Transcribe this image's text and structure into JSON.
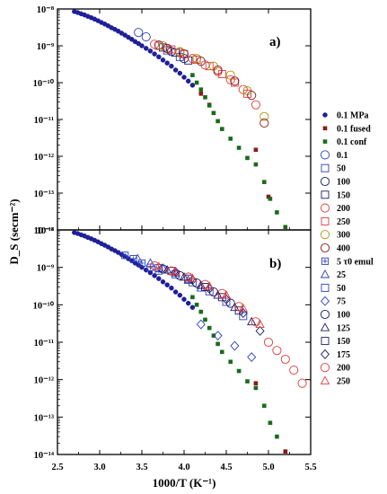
{
  "chart_data": [
    {
      "type": "scatter",
      "panel_label": "a)",
      "xlabel": "1000/T (K⁻¹)",
      "ylabel": "D_S (secm⁻²)",
      "xlim": [
        2.5,
        5.5
      ],
      "ylim_log10": [
        -14,
        -8
      ],
      "y_scale": "log",
      "x_ticks": [
        "2.5",
        "3.0",
        "3.5",
        "4.0",
        "4.5",
        "5.0",
        "5.5"
      ],
      "y_ticks": [
        "10⁻¹⁴",
        "10⁻¹³",
        "10⁻¹²",
        "10⁻¹¹",
        "10⁻¹⁰",
        "10⁻⁹",
        "10⁻⁸"
      ],
      "series": [
        {
          "name": "0.1 MPa",
          "marker": "dot",
          "color": "#1f1f99",
          "x": [
            2.7,
            2.74,
            2.78,
            2.82,
            2.86,
            2.9,
            2.94,
            2.98,
            3.02,
            3.06,
            3.1,
            3.14,
            3.18,
            3.22,
            3.26,
            3.3,
            3.34,
            3.38,
            3.42,
            3.46,
            3.5,
            3.55,
            3.6,
            3.65,
            3.7,
            3.75,
            3.8,
            3.85,
            3.9,
            3.95,
            4.0,
            4.05,
            4.1
          ],
          "y": [
            8.5e-09,
            8e-09,
            7.4e-09,
            6.9e-09,
            6.3e-09,
            5.8e-09,
            5.3e-09,
            4.8e-09,
            4.3e-09,
            3.9e-09,
            3.5e-09,
            3.1e-09,
            2.8e-09,
            2.5e-09,
            2.2e-09,
            1.95e-09,
            1.7e-09,
            1.5e-09,
            1.3e-09,
            1.15e-09,
            1e-09,
            8.5e-10,
            7.2e-10,
            6e-10,
            5e-10,
            4.1e-10,
            3.4e-10,
            2.8e-10,
            2.2e-10,
            1.8e-10,
            1.4e-10,
            1.1e-10,
            8.5e-11
          ]
        },
        {
          "name": "0.1 fused",
          "marker": "square-filled-small",
          "color": "#8b1a1a",
          "x": [
            4.2,
            4.3,
            4.85,
            5.0
          ],
          "y": [
            5e-11,
            2.5e-11,
            1.5e-12,
            8e-14
          ]
        },
        {
          "name": "0.1 conf",
          "marker": "square-filled-small",
          "color": "#1a6b1a",
          "x": [
            4.1,
            4.15,
            4.2,
            4.25,
            4.3,
            4.35,
            4.4,
            4.45,
            4.55,
            4.65,
            4.75,
            4.85,
            4.95,
            5.02,
            5.1,
            5.2
          ],
          "y": [
            1.6e-10,
            1e-10,
            6.5e-11,
            4e-11,
            2.4e-11,
            1.5e-11,
            9e-12,
            5.5e-12,
            3e-12,
            1.7e-12,
            9e-13,
            6e-13,
            2e-13,
            7e-14,
            3e-14,
            1.2e-14
          ]
        },
        {
          "name": "0.1",
          "marker": "circle",
          "color": "#2a3fbf",
          "x": [
            3.46,
            3.55
          ],
          "y": [
            2.3e-09,
            1.75e-09
          ]
        },
        {
          "name": "50",
          "marker": "square",
          "color": "#2a3fbf",
          "x": [
            3.8,
            3.95
          ],
          "y": [
            7.5e-10,
            5e-10
          ]
        },
        {
          "name": "100",
          "marker": "circle",
          "color": "#1a1a6b",
          "x": [
            3.7,
            3.85,
            4.0
          ],
          "y": [
            1.05e-09,
            7e-10,
            4.5e-10
          ]
        },
        {
          "name": "150",
          "marker": "square",
          "color": "#1a1a6b",
          "x": [
            3.75,
            3.9,
            4.05
          ],
          "y": [
            9e-10,
            6.5e-10,
            4e-10
          ]
        },
        {
          "name": "200",
          "marker": "circle",
          "color": "#e03a3a",
          "x": [
            3.65,
            3.8,
            3.95,
            4.1,
            4.25,
            4.4,
            4.55,
            4.7,
            4.85
          ],
          "y": [
            1.1e-09,
            8.5e-10,
            6.5e-10,
            4.5e-10,
            3e-10,
            2e-10,
            1.2e-10,
            6.5e-11,
            2.5e-11
          ]
        },
        {
          "name": "250",
          "marker": "square",
          "color": "#e03a3a",
          "x": [
            3.7,
            3.85,
            4.0,
            4.15,
            4.3,
            4.45,
            4.6,
            4.75
          ],
          "y": [
            1e-09,
            8e-10,
            6e-10,
            4.2e-10,
            2.8e-10,
            1.7e-10,
            1e-10,
            5e-11
          ]
        },
        {
          "name": "300",
          "marker": "circle",
          "color": "#a39a10",
          "x": [
            3.75,
            3.95,
            4.15,
            4.35,
            4.55,
            4.75,
            4.95
          ],
          "y": [
            1e-09,
            7e-10,
            4.5e-10,
            2.8e-10,
            1.6e-10,
            6e-11,
            1.2e-11
          ]
        },
        {
          "name": "400",
          "marker": "circle",
          "color": "#8b1a1a",
          "x": [
            3.8,
            4.0,
            4.2,
            4.4,
            4.6,
            4.8,
            4.95
          ],
          "y": [
            8.5e-10,
            6e-10,
            3.8e-10,
            2.2e-10,
            1.1e-10,
            4.5e-11,
            8e-12
          ]
        }
      ]
    },
    {
      "type": "scatter",
      "panel_label": "b)",
      "xlabel": "1000/T (K⁻¹)",
      "ylabel": "D_S (secm⁻²)",
      "xlim": [
        2.5,
        5.5
      ],
      "ylim_log10": [
        -14,
        -8
      ],
      "y_scale": "log",
      "x_ticks": [
        "2.5",
        "3.0",
        "3.5",
        "4.0",
        "4.5",
        "5.0",
        "5.5"
      ],
      "y_ticks": [
        "10⁻¹⁴",
        "10⁻¹³",
        "10⁻¹²",
        "10⁻¹¹",
        "10⁻¹⁰",
        "10⁻⁹",
        "10⁻⁸"
      ],
      "series": [
        {
          "name": "0.1 MPa",
          "marker": "dot",
          "color": "#1f1f99",
          "x": [
            2.7,
            2.74,
            2.78,
            2.82,
            2.86,
            2.9,
            2.94,
            2.98,
            3.02,
            3.06,
            3.1,
            3.14,
            3.18,
            3.22,
            3.26,
            3.3,
            3.34,
            3.38,
            3.42,
            3.46,
            3.5,
            3.55,
            3.6,
            3.65,
            3.7,
            3.75,
            3.8,
            3.85,
            3.9,
            3.95,
            4.0,
            4.05,
            4.1
          ],
          "y": [
            8.5e-09,
            8e-09,
            7.4e-09,
            6.9e-09,
            6.3e-09,
            5.8e-09,
            5.3e-09,
            4.8e-09,
            4.3e-09,
            3.9e-09,
            3.5e-09,
            3.1e-09,
            2.8e-09,
            2.5e-09,
            2.2e-09,
            1.95e-09,
            1.7e-09,
            1.5e-09,
            1.3e-09,
            1.15e-09,
            1e-09,
            8.5e-10,
            7.2e-10,
            6e-10,
            5e-10,
            4.1e-10,
            3.4e-10,
            2.8e-10,
            2.2e-10,
            1.8e-10,
            1.4e-10,
            1.1e-10,
            8.5e-11
          ]
        },
        {
          "name": "0.1 conf",
          "marker": "square-filled-small",
          "color": "#1a6b1a",
          "x": [
            4.1,
            4.15,
            4.2,
            4.25,
            4.3,
            4.35,
            4.4,
            4.45,
            4.55,
            4.65,
            4.75,
            4.85,
            4.95,
            5.02,
            5.1,
            5.2
          ],
          "y": [
            1.6e-10,
            1e-10,
            6.5e-11,
            4e-11,
            2.4e-11,
            1.5e-11,
            9e-12,
            5.5e-12,
            3e-12,
            1.7e-12,
            9e-13,
            6e-13,
            2e-13,
            7e-14,
            3e-14,
            1.2e-14
          ]
        },
        {
          "name": "0.1 fused",
          "marker": "square-filled-small",
          "color": "#8b1a1a",
          "x": [
            4.85,
            5.2
          ],
          "y": [
            8e-13,
            1.2e-14
          ]
        },
        {
          "name": "5 τ0 emul",
          "marker": "square-plus",
          "color": "#2a3fbf",
          "x": [
            3.3,
            3.4,
            3.5,
            3.6,
            3.7
          ],
          "y": [
            2.1e-09,
            1.7e-09,
            1.3e-09,
            1e-09,
            8e-10
          ]
        },
        {
          "name": "25",
          "marker": "triangle",
          "color": "#2a3fbf",
          "x": [
            3.45,
            3.6,
            3.75,
            3.9,
            4.05,
            4.2
          ],
          "y": [
            1.7e-09,
            1.3e-09,
            9.5e-10,
            7e-10,
            4.5e-10,
            2.8e-10
          ]
        },
        {
          "name": "50",
          "marker": "square",
          "color": "#2a3fbf",
          "x": [
            3.7,
            3.9,
            4.1,
            4.3,
            4.5,
            4.7
          ],
          "y": [
            9.5e-10,
            6.5e-10,
            4e-10,
            2.3e-10,
            1.2e-10,
            5e-11
          ]
        },
        {
          "name": "75",
          "marker": "diamond",
          "color": "#2a3fbf",
          "x": [
            4.2,
            4.4,
            4.6,
            4.8
          ],
          "y": [
            3e-11,
            1.5e-11,
            8e-12,
            4e-12
          ]
        },
        {
          "name": "100",
          "marker": "circle",
          "color": "#1a1a6b",
          "x": [
            3.75,
            3.95,
            4.15,
            4.35,
            4.55
          ],
          "y": [
            9e-10,
            6e-10,
            3.8e-10,
            2.2e-10,
            1.1e-10
          ]
        },
        {
          "name": "125",
          "marker": "triangle",
          "color": "#1a1a6b",
          "x": [
            3.8,
            4.0,
            4.2,
            4.4,
            4.6,
            4.8
          ],
          "y": [
            8.5e-10,
            5.5e-10,
            3.3e-10,
            1.8e-10,
            8.5e-11,
            3.5e-11
          ]
        },
        {
          "name": "150",
          "marker": "square",
          "color": "#1a1a6b",
          "x": [
            3.85,
            4.05,
            4.25,
            4.45,
            4.65
          ],
          "y": [
            8e-10,
            5e-10,
            3e-10,
            1.6e-10,
            7e-11
          ]
        },
        {
          "name": "175",
          "marker": "diamond",
          "color": "#1a1a6b",
          "x": [
            3.9,
            4.1,
            4.3,
            4.5,
            4.7,
            4.9
          ],
          "y": [
            7.5e-10,
            4.6e-10,
            2.7e-10,
            1.4e-10,
            6e-11,
            2e-11
          ]
        },
        {
          "name": "200",
          "marker": "circle",
          "color": "#e03a3a",
          "x": [
            3.65,
            3.85,
            4.05,
            4.25,
            4.45,
            4.65,
            4.85,
            5.0,
            5.1,
            5.2,
            5.3,
            5.4
          ],
          "y": [
            1.1e-09,
            8e-10,
            5.5e-10,
            3.5e-10,
            2e-10,
            9e-11,
            3.5e-11,
            1e-11,
            6e-12,
            3.5e-12,
            1.8e-12,
            8e-13
          ]
        },
        {
          "name": "250",
          "marker": "triangle",
          "color": "#e03a3a",
          "x": [
            3.7,
            3.9,
            4.1,
            4.3,
            4.5,
            4.7,
            4.9
          ],
          "y": [
            1.05e-09,
            7.5e-10,
            5e-10,
            3.1e-10,
            1.8e-10,
            8e-11,
            3e-11
          ]
        }
      ]
    }
  ]
}
